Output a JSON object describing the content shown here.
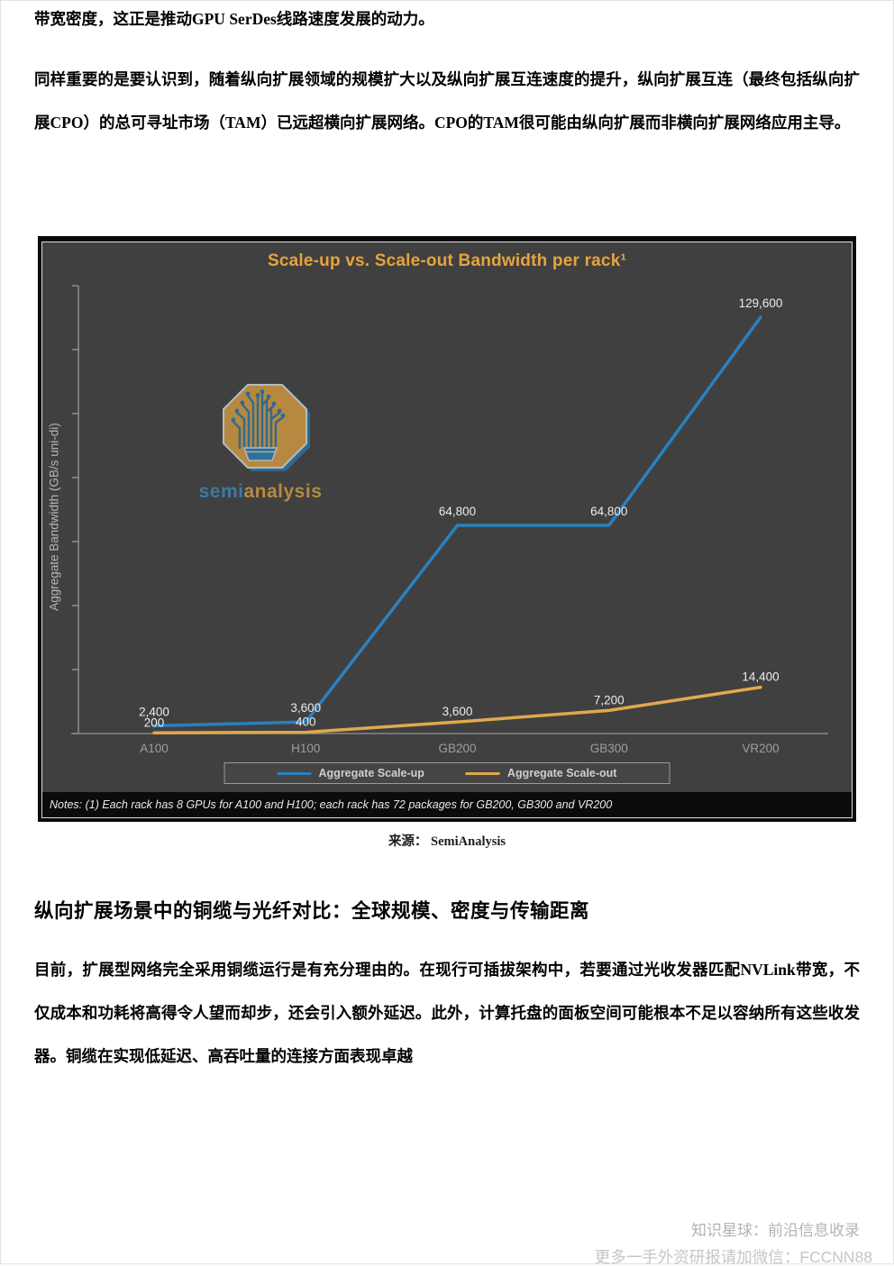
{
  "page": {
    "paragraph_top": "带宽密度，这正是推动GPU SerDes线路速度发展的动力。",
    "paragraph_tam": "同样重要的是要认识到，随着纵向扩展领域的规模扩大以及纵向扩展互连速度的提升，纵向扩展互连（最终包括纵向扩展CPO）的总可寻址市场（TAM）已远超横向扩展网络。CPO的TAM很可能由纵向扩展而非横向扩展网络应用主导。",
    "source_label": "来源： SemiAnalysis",
    "section_heading": "纵向扩展场景中的铜缆与光纤对比：全球规模、密度与传输距离",
    "paragraph_copper": "目前，扩展型网络完全采用铜缆运行是有充分理由的。在现行可插拔架构中，若要通过光收发器匹配NVLink带宽，不仅成本和功耗将高得令人望而却步，还会引入额外延迟。此外，计算托盘的面板空间可能根本不足以容纳所有这些收发器。铜缆在实现低延迟、高吞吐量的连接方面表现卓越",
    "watermark_line1": "知识星球：前沿信息收录",
    "watermark_line2": "更多一手外资研报请加微信：FCCNN88"
  },
  "chart": {
    "title": "Scale-up vs. Scale-out Bandwidth per rack¹",
    "ylabel": "Aggregate Bandwidth (GB/s uni-di)",
    "notes": "Notes: (1) Each rack has 8 GPUs for A100 and H100; each rack has 72 packages for GB200, GB300 and VR200",
    "logo": {
      "semi": "semi",
      "analysis": "analysis"
    },
    "colors": {
      "plot_background": "#404040",
      "frame": "#0b0b0b",
      "title": "#E8A33B",
      "scale_up": "#2B80C0",
      "scale_out": "#E2A84E",
      "axis": "#8f8f8f",
      "data_label": "#ECECEC",
      "category_label": "#9E9E9E"
    }
  },
  "chart_data": {
    "type": "line",
    "title": "Scale-up vs. Scale-out Bandwidth per rack¹",
    "xlabel": "",
    "ylabel": "Aggregate Bandwidth (GB/s uni-di)",
    "categories": [
      "A100",
      "H100",
      "GB200",
      "GB300",
      "VR200"
    ],
    "series": [
      {
        "name": "Aggregate Scale-up",
        "color": "#2B80C0",
        "values": [
          2400,
          3600,
          64800,
          64800,
          129600
        ],
        "labels": [
          "2,400",
          "3,600",
          "64,800",
          "64,800",
          "129,600"
        ]
      },
      {
        "name": "Aggregate Scale-out",
        "color": "#E2A84E",
        "values": [
          200,
          400,
          3600,
          7200,
          14400
        ],
        "labels": [
          "200",
          "400",
          "3,600",
          "7,200",
          "14,400"
        ]
      }
    ],
    "ylim": [
      0,
      129600
    ],
    "grid": false,
    "legend_position": "bottom-center",
    "notes": "Notes: (1) Each rack has 8 GPUs for A100 and H100; each rack has 72 packages for GB200, GB300 and VR200"
  }
}
